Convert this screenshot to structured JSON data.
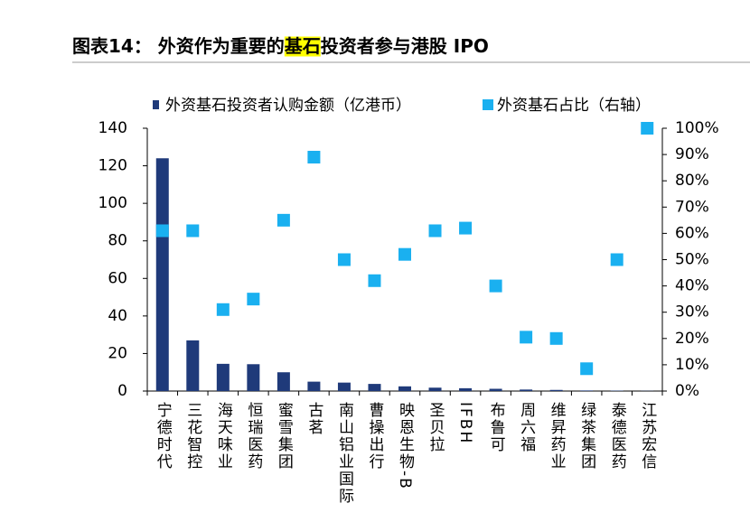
{
  "chart_data": {
    "type": "bar-scatter",
    "title": [
      "图表14： 外资作为重要的",
      "基石",
      "投资者参与港股 IPO"
    ],
    "categories": [
      "宁德时代",
      "三花智控",
      "海天味业",
      "恒瑞医药",
      "蜜雪集团",
      "古茗",
      "南山铝业国际",
      "曹操出行",
      "映恩生物-B",
      "圣贝拉",
      "IFBH",
      "布鲁可",
      "周六福",
      "维昇药业",
      "绿茶集团",
      "泰德医药",
      "江苏宏信"
    ],
    "series": [
      {
        "name": "外资基石投资者认购金额（亿港币）",
        "color": "#1f3a7a",
        "values": [
          124,
          27,
          14.5,
          14.3,
          10,
          5,
          4.5,
          3.8,
          2.5,
          1.8,
          1.5,
          1.2,
          0.8,
          0.6,
          0.3,
          0.2,
          0.1
        ]
      },
      {
        "name": "外资基石占比（右轴）",
        "color": "#1ab0f0",
        "axis": "y2",
        "values": [
          61,
          61,
          31,
          35,
          65,
          89,
          50,
          42,
          52,
          61,
          62,
          40,
          20.5,
          20,
          8.5,
          50,
          100
        ]
      }
    ],
    "ylim": [
      0,
      140
    ],
    "yticks": [
      0,
      20,
      40,
      60,
      80,
      100,
      120,
      140
    ],
    "y2lim": [
      0,
      100
    ],
    "y2ticks": [
      {
        "value": 0,
        "label": "0%"
      },
      {
        "value": 10,
        "label": "10%"
      },
      {
        "value": 20,
        "label": "20%"
      },
      {
        "value": 30,
        "label": "30%"
      },
      {
        "value": 40,
        "label": "40%"
      },
      {
        "value": 50,
        "label": "50%"
      },
      {
        "value": 60,
        "label": "60%"
      },
      {
        "value": 70,
        "label": "70%"
      },
      {
        "value": 80,
        "label": "80%"
      },
      {
        "value": 90,
        "label": "90%"
      },
      {
        "value": 100,
        "label": "100%"
      }
    ]
  }
}
